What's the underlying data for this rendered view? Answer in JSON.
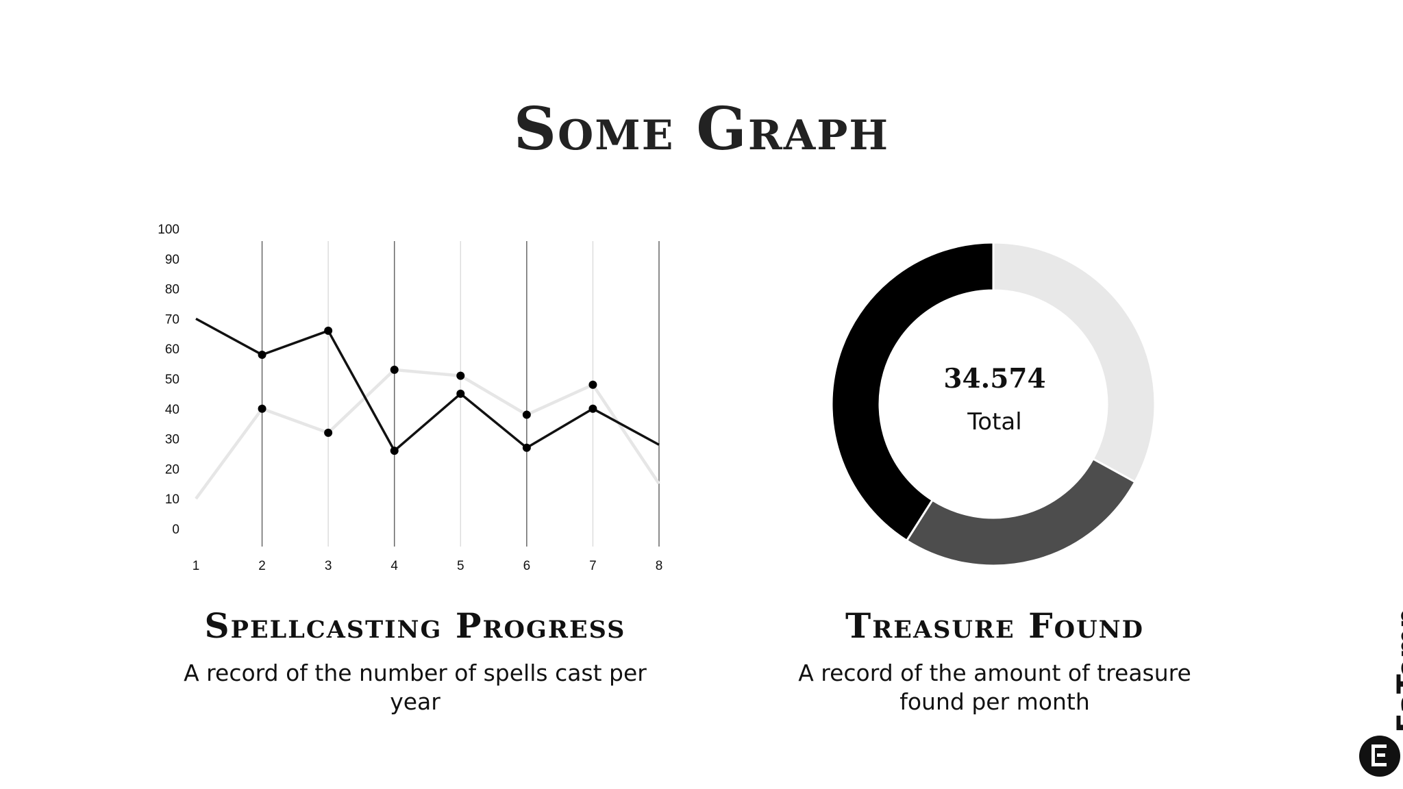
{
  "page": {
    "title": "Some Graph"
  },
  "line_section": {
    "title": "Spellcasting Progress",
    "description": "A record of the number of spells cast per year"
  },
  "donut_section": {
    "title": "Treasure Found",
    "description": "A record of the amount of treasure found per month",
    "center_value": "34.574",
    "center_label": "Total"
  },
  "brand": {
    "name": "EaTemp"
  },
  "colors": {
    "series_dark": "#111111",
    "series_light": "#e6e6e6",
    "slice_black": "#000000",
    "slice_gray": "#4d4d4d",
    "slice_light": "#e8e8e8"
  },
  "chart_data": [
    {
      "type": "line",
      "x": [
        1,
        2,
        3,
        4,
        5,
        6,
        7,
        8
      ],
      "ylim": [
        0,
        100
      ],
      "yticks": [
        0,
        10,
        20,
        30,
        40,
        50,
        60,
        70,
        80,
        90,
        100
      ],
      "grid": "vertical",
      "legend": "none",
      "series": [
        {
          "values": [
            70,
            58,
            66,
            26,
            45,
            27,
            40,
            28
          ],
          "color": "#111111"
        },
        {
          "values": [
            10,
            40,
            32,
            53,
            51,
            38,
            48,
            15
          ],
          "color": "#e6e6e6"
        }
      ]
    },
    {
      "type": "pie",
      "donut": true,
      "slices": [
        {
          "value": 33,
          "color": "#e8e8e8"
        },
        {
          "value": 26,
          "color": "#4d4d4d"
        },
        {
          "value": 41,
          "color": "#000000"
        }
      ]
    }
  ]
}
